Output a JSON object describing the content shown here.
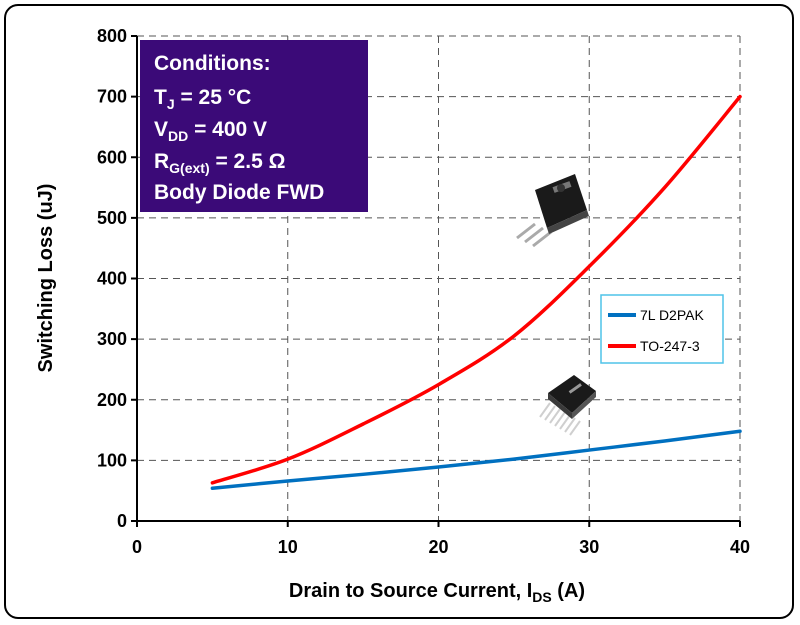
{
  "chart_data": {
    "type": "line",
    "xlabel_main": "Drain to Source Current, I",
    "xlabel_sub": "DS",
    "xlabel_tail": " (A)",
    "ylabel": "Switching Loss (uJ)",
    "xlim": [
      0,
      40
    ],
    "ylim": [
      0,
      800
    ],
    "x_ticks": [
      "0",
      "10",
      "20",
      "30",
      "40"
    ],
    "y_ticks": [
      "0",
      "100",
      "200",
      "300",
      "400",
      "500",
      "600",
      "700",
      "800"
    ],
    "grid": true,
    "legend_position": "right",
    "series": [
      {
        "name": "7L D2PAK",
        "color": "#0070C0",
        "x": [
          5,
          10,
          15,
          20,
          25,
          30,
          35,
          40
        ],
        "values": [
          54,
          66,
          77,
          89,
          102,
          117,
          132,
          148
        ]
      },
      {
        "name": "TO-247-3",
        "color": "#FF0000",
        "x": [
          5,
          10,
          15,
          20,
          25,
          30,
          35,
          40
        ],
        "values": [
          63,
          102,
          160,
          225,
          305,
          420,
          550,
          700
        ]
      }
    ],
    "conditions": {
      "title": "Conditions:",
      "tj_main": "T",
      "tj_sub": "J",
      "tj_tail": " = 25 °C",
      "vdd_main": "V",
      "vdd_sub": "DD",
      "vdd_tail": " = 400 V",
      "rg_main": "R",
      "rg_sub": "G(ext)",
      "rg_tail": " = 2.5 Ω",
      "diode": "Body Diode FWD",
      "box_color": "#3B0A78"
    },
    "package_icons": [
      "to-247-package-icon",
      "d2pak-package-icon"
    ]
  }
}
